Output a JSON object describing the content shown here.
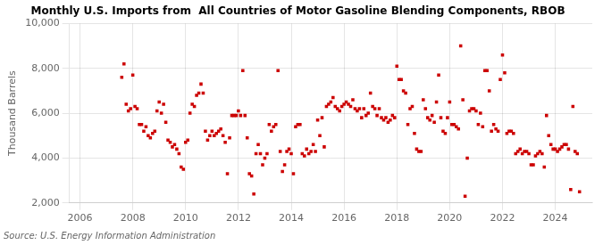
{
  "chart_data": {
    "type": "scatter",
    "title": "Monthly U.S. Imports from  All Countries of Motor Gasoline Blending Components, RBOB",
    "ylabel": "Thousand Barrels",
    "annotation": "Source: U.S. Energy Information Administration",
    "color": "#cc0000",
    "marker": "square",
    "grid": true,
    "xlim": [
      2005.6,
      2025.4
    ],
    "xticks": [
      2006,
      2008,
      2010,
      2012,
      2014,
      2016,
      2018,
      2020,
      2022,
      2024
    ],
    "ylim": [
      2000,
      10000
    ],
    "yticks": [
      {
        "value": 2000,
        "label": "2,000"
      },
      {
        "value": 4000,
        "label": "4,000"
      },
      {
        "value": 6000,
        "label": "6,000"
      },
      {
        "value": 8000,
        "label": "8,000"
      },
      {
        "value": 10000,
        "label": "10,000"
      }
    ],
    "x": [
      2007.5833333333333,
      2007.6666666666667,
      2007.75,
      2007.8333333333333,
      2007.9166666666667,
      2008,
      2008.0833333333333,
      2008.1666666666667,
      2008.25,
      2008.3333333333333,
      2008.4166666666667,
      2008.5,
      2008.5833333333333,
      2008.6666666666667,
      2008.75,
      2008.8333333333333,
      2008.9166666666667,
      2009,
      2009.0833333333333,
      2009.1666666666667,
      2009.25,
      2009.3333333333333,
      2009.4166666666667,
      2009.5,
      2009.5833333333333,
      2009.6666666666667,
      2009.75,
      2009.8333333333333,
      2009.9166666666667,
      2010,
      2010.0833333333333,
      2010.1666666666667,
      2010.25,
      2010.3333333333333,
      2010.4166666666667,
      2010.5,
      2010.5833333333333,
      2010.6666666666667,
      2010.75,
      2010.8333333333333,
      2010.9166666666667,
      2011,
      2011.0833333333333,
      2011.1666666666667,
      2011.25,
      2011.3333333333333,
      2011.4166666666667,
      2011.5,
      2011.5833333333333,
      2011.6666666666667,
      2011.75,
      2011.8333333333333,
      2011.9166666666667,
      2012,
      2012.0833333333333,
      2012.1666666666667,
      2012.25,
      2012.3333333333333,
      2012.4166666666667,
      2012.5,
      2012.5833333333333,
      2012.6666666666667,
      2012.75,
      2012.8333333333333,
      2012.9166666666667,
      2013,
      2013.0833333333333,
      2013.1666666666667,
      2013.25,
      2013.3333333333333,
      2013.4166666666667,
      2013.5,
      2013.5833333333333,
      2013.6666666666667,
      2013.75,
      2013.8333333333333,
      2013.9166666666667,
      2014,
      2014.0833333333333,
      2014.1666666666667,
      2014.25,
      2014.3333333333333,
      2014.4166666666667,
      2014.5,
      2014.5833333333333,
      2014.6666666666667,
      2014.75,
      2014.8333333333333,
      2014.9166666666667,
      2015,
      2015.0833333333333,
      2015.1666666666667,
      2015.25,
      2015.3333333333333,
      2015.4166666666667,
      2015.5,
      2015.5833333333333,
      2015.6666666666667,
      2015.75,
      2015.8333333333333,
      2015.9166666666667,
      2016,
      2016.0833333333333,
      2016.1666666666667,
      2016.25,
      2016.3333333333333,
      2016.4166666666667,
      2016.5,
      2016.5833333333333,
      2016.6666666666667,
      2016.75,
      2016.8333333333333,
      2016.9166666666667,
      2017,
      2017.0833333333333,
      2017.1666666666667,
      2017.25,
      2017.3333333333333,
      2017.4166666666667,
      2017.5,
      2017.5833333333333,
      2017.6666666666667,
      2017.75,
      2017.8333333333333,
      2017.9166666666667,
      2018,
      2018.0833333333333,
      2018.1666666666667,
      2018.25,
      2018.3333333333333,
      2018.4166666666667,
      2018.5,
      2018.5833333333333,
      2018.6666666666667,
      2018.75,
      2018.8333333333333,
      2018.9166666666667,
      2019,
      2019.0833333333333,
      2019.1666666666667,
      2019.25,
      2019.3333333333333,
      2019.4166666666667,
      2019.5,
      2019.5833333333333,
      2019.6666666666667,
      2019.75,
      2019.8333333333333,
      2019.9166666666667,
      2020,
      2020.0833333333333,
      2020.1666666666667,
      2020.25,
      2020.3333333333333,
      2020.4166666666667,
      2020.5,
      2020.5833333333333,
      2020.6666666666667,
      2020.75,
      2020.8333333333333,
      2020.9166666666667,
      2021,
      2021.0833333333333,
      2021.1666666666667,
      2021.25,
      2021.3333333333333,
      2021.4166666666667,
      2021.5,
      2021.5833333333333,
      2021.6666666666667,
      2021.75,
      2021.8333333333333,
      2021.9166666666667,
      2022,
      2022.0833333333333,
      2022.1666666666667,
      2022.25,
      2022.3333333333333,
      2022.4166666666667,
      2022.5,
      2022.5833333333333,
      2022.6666666666667,
      2022.75,
      2022.8333333333333,
      2022.9166666666667,
      2023,
      2023.0833333333333,
      2023.1666666666667,
      2023.25,
      2023.3333333333333,
      2023.4166666666667,
      2023.5,
      2023.5833333333333,
      2023.6666666666667,
      2023.75,
      2023.8333333333333,
      2023.9166666666667,
      2024,
      2024.0833333333333,
      2024.1666666666667,
      2024.25,
      2024.3333333333333,
      2024.4166666666667,
      2024.5,
      2024.5833333333333,
      2024.6666666666667,
      2024.75,
      2024.8333333333333,
      2024.9166666666667
    ],
    "values": [
      7600,
      8200,
      6400,
      6100,
      6200,
      7700,
      6300,
      6200,
      5500,
      5500,
      5200,
      5400,
      5000,
      4900,
      5100,
      5200,
      6100,
      6500,
      6000,
      6400,
      5600,
      4800,
      4700,
      4500,
      4600,
      4400,
      4200,
      3600,
      3500,
      4700,
      4800,
      6000,
      6400,
      6300,
      6800,
      6900,
      7300,
      6900,
      5200,
      4800,
      5000,
      5200,
      5000,
      5100,
      5200,
      5300,
      5000,
      4700,
      3300,
      4900,
      5900,
      5900,
      5900,
      6100,
      5900,
      7900,
      5900,
      4900,
      3300,
      3200,
      2400,
      4200,
      4600,
      4200,
      3700,
      4000,
      4200,
      5500,
      5200,
      5400,
      5500,
      7900,
      4300,
      3400,
      3700,
      4300,
      4400,
      4200,
      3300,
      5400,
      5500,
      5500,
      4200,
      4100,
      4400,
      4200,
      4300,
      4600,
      4300,
      5700,
      5000,
      5800,
      4500,
      6300,
      6400,
      6500,
      6700,
      6300,
      6200,
      6100,
      6300,
      6400,
      6500,
      6400,
      6300,
      6600,
      6200,
      6100,
      6200,
      5800,
      6200,
      5900,
      6000,
      6900,
      6300,
      6200,
      5900,
      6200,
      5800,
      5700,
      5800,
      5600,
      5700,
      5900,
      5800,
      8100,
      7500,
      7500,
      7000,
      6900,
      5500,
      6200,
      6300,
      5100,
      4400,
      4300,
      4300,
      6600,
      6200,
      5800,
      5700,
      5900,
      5600,
      6500,
      7700,
      5800,
      5200,
      5100,
      5800,
      6500,
      5500,
      5500,
      5400,
      5300,
      9000,
      6600,
      2300,
      4000,
      6100,
      6200,
      6200,
      6100,
      5500,
      6000,
      5400,
      7900,
      7900,
      7000,
      5200,
      5500,
      5300,
      5200,
      7500,
      8600,
      7800,
      5100,
      5200,
      5200,
      5100,
      4200,
      4300,
      4400,
      4200,
      4300,
      4300,
      4200,
      3700,
      3700,
      4100,
      4200,
      4300,
      4200,
      3600,
      5900,
      5000,
      4600,
      4400,
      4400,
      4300,
      4400,
      4500,
      4600,
      4600,
      4400,
      2600,
      6300,
      4300,
      4200,
      2500
    ]
  }
}
